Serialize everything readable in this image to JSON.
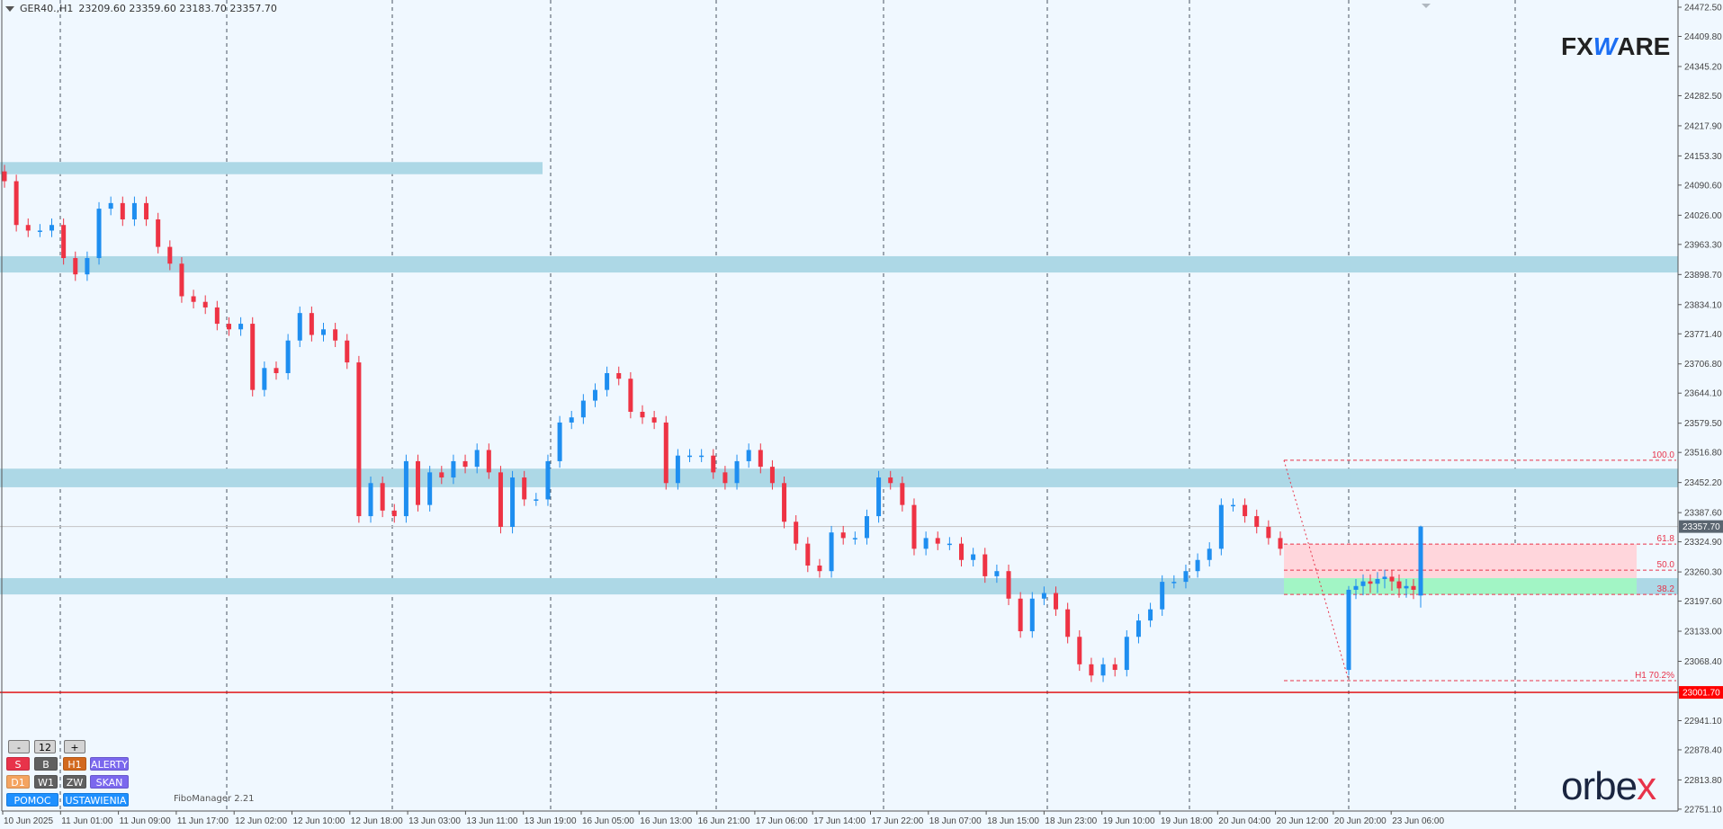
{
  "header": {
    "symbol": "GER40.,H1",
    "ohlc": "23209.60 23359.60 23183.70 23357.70"
  },
  "logos": {
    "top": "FXWARE",
    "bottom": "orbex"
  },
  "panel": {
    "minus": "-",
    "count": "12",
    "plus": "+",
    "row1": [
      "S",
      "B",
      "H1",
      "ALERTY"
    ],
    "row2": [
      "D1",
      "W1",
      "ZW",
      "SKAN"
    ],
    "row3": [
      "POMOC",
      "USTAWIENIA"
    ],
    "indicator_name": "FiboManager 2.21"
  },
  "colors": {
    "bull": "#1e8ef0",
    "bear": "#ee3344",
    "zone": "#add8e6",
    "fib_sell": "#ffd6dc",
    "fib_buy": "#a2f5c5",
    "fib_line": "#e8334a",
    "level_line": "#e00000",
    "background": "#f0f8ff"
  },
  "chart_data": {
    "type": "candlestick",
    "symbol": "GER40.",
    "timeframe": "H1",
    "ylim": [
      22751.1,
      24472.5
    ],
    "y_ticks": [
      "24472.50",
      "24409.80",
      "24345.20",
      "24282.50",
      "24217.90",
      "24153.30",
      "24090.60",
      "24026.00",
      "23963.30",
      "23898.70",
      "23834.10",
      "23771.40",
      "23706.80",
      "23644.10",
      "23579.50",
      "23516.80",
      "23452.20",
      "23387.60",
      "23324.90",
      "23260.30",
      "23197.60",
      "23133.00",
      "23068.40",
      "23001.70",
      "22941.10",
      "22878.40",
      "22813.80",
      "22751.10"
    ],
    "x_ticks": [
      "10 Jun 2025",
      "11 Jun 01:00",
      "11 Jun 09:00",
      "11 Jun 17:00",
      "12 Jun 02:00",
      "12 Jun 10:00",
      "12 Jun 18:00",
      "13 Jun 03:00",
      "13 Jun 11:00",
      "13 Jun 19:00",
      "16 Jun 05:00",
      "16 Jun 13:00",
      "16 Jun 21:00",
      "17 Jun 06:00",
      "17 Jun 14:00",
      "17 Jun 22:00",
      "18 Jun 07:00",
      "18 Jun 15:00",
      "18 Jun 23:00",
      "19 Jun 10:00",
      "19 Jun 18:00",
      "20 Jun 04:00",
      "20 Jun 12:00",
      "20 Jun 20:00",
      "23 Jun 06:00"
    ],
    "first_open": 24120,
    "closes": [
      24099,
      24005,
      23993,
      23993,
      24005,
      23934,
      23899,
      23934,
      24040,
      24052,
      24017,
      24052,
      24017,
      23958,
      23922,
      23852,
      23840,
      23828,
      23793,
      23781,
      23793,
      23651,
      23698,
      23687,
      23757,
      23816,
      23769,
      23781,
      23757,
      23710,
      23380,
      23451,
      23392,
      23380,
      23498,
      23404,
      23474,
      23463,
      23498,
      23486,
      23522,
      23474,
      23357,
      23463,
      23416,
      23416,
      23498,
      23581,
      23592,
      23628,
      23651,
      23687,
      23675,
      23604,
      23592,
      23581,
      23451,
      23510,
      23510,
      23510,
      23474,
      23451,
      23498,
      23522,
      23486,
      23451,
      23368,
      23321,
      23274,
      23262,
      23345,
      23333,
      23333,
      23380,
      23463,
      23451,
      23404,
      23310,
      23333,
      23321,
      23321,
      23286,
      23298,
      23251,
      23262,
      23203,
      23133,
      23203,
      23215,
      23180,
      23121,
      23062,
      23038,
      23062,
      23050,
      23121,
      23156,
      23180,
      23239,
      23239,
      23262,
      23286,
      23310,
      23404,
      23404,
      23380,
      23357,
      23333,
      23310
    ],
    "gap_candle": {
      "open": 23050,
      "close": 23222
    },
    "after_gap_closes": [
      23230,
      23240,
      23235,
      23245,
      23250,
      23240,
      23225,
      23230,
      23222
    ],
    "last_candle": {
      "open": 23209.6,
      "high": 23359.6,
      "low": 23183.7,
      "close": 23357.7
    },
    "zones": [
      {
        "top": 24140,
        "bottom": 24114,
        "extends": "partial"
      },
      {
        "top": 23938,
        "bottom": 23903,
        "extends": "full"
      },
      {
        "top": 23482,
        "bottom": 23442,
        "extends": "full"
      },
      {
        "top": 23247,
        "bottom": 23212,
        "extends": "full"
      }
    ],
    "current_price": "23357.70",
    "level_line": "23001.70",
    "fibonacci": {
      "high": 23500,
      "low": 23027,
      "levels": [
        {
          "label": "100.0",
          "price": 23500
        },
        {
          "label": "61.8",
          "price": 23320
        },
        {
          "label": "50.0",
          "price": 23264
        },
        {
          "label": "38.2",
          "price": 23212
        },
        {
          "label": "H1 70.2%",
          "price": 23027
        }
      ],
      "sell_zone": [
        23320,
        23247
      ],
      "buy_zone": [
        23247,
        23212
      ]
    }
  }
}
